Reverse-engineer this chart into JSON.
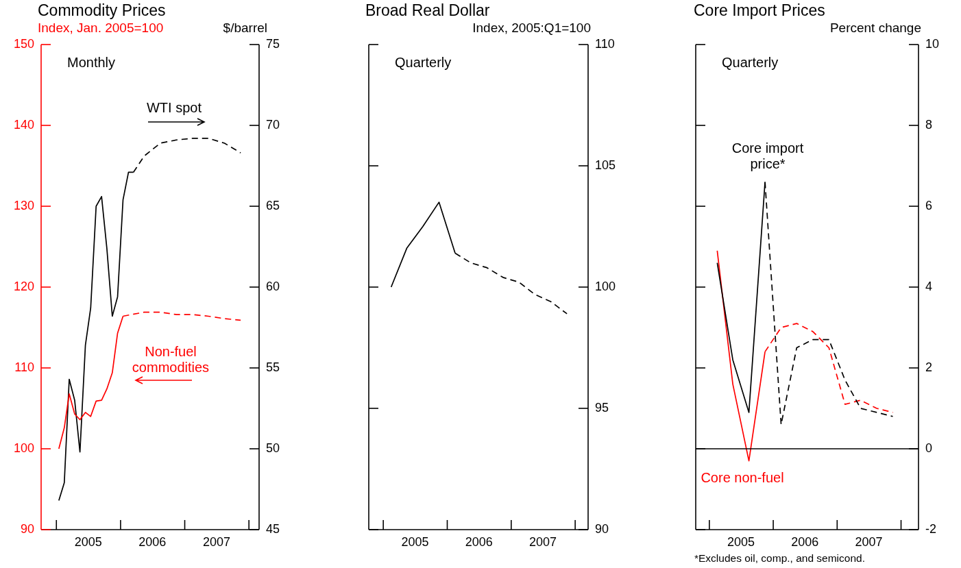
{
  "chart_data": [
    {
      "type": "line",
      "title": "Commodity Prices",
      "ylabel": "Index, Jan. 2005=100",
      "y2label": "$/barrel",
      "annotations": [
        "Monthly"
      ],
      "xlim": [
        "2004-10-06",
        "2008-02-28"
      ],
      "xticks": [
        {
          "value": "2005-01-01",
          "label": null
        },
        {
          "value": "2005-07-01",
          "label": "2005"
        },
        {
          "value": "2006-01-01",
          "label": null
        },
        {
          "value": "2006-07-01",
          "label": "2006"
        },
        {
          "value": "2007-01-01",
          "label": null
        },
        {
          "value": "2007-07-01",
          "label": "2007"
        },
        {
          "value": "2008-01-01",
          "label": null
        }
      ],
      "ylim": [
        90,
        150
      ],
      "yticks": [
        90,
        100,
        110,
        120,
        130,
        140,
        150
      ],
      "y2lim": [
        45,
        75
      ],
      "y2ticks": [
        45,
        50,
        55,
        60,
        65,
        70,
        75
      ],
      "series": [
        {
          "name": "Non-fuel commodities",
          "color": "#ff0000",
          "x": [
            "2005-01-15",
            "2005-02-15",
            "2005-03-15",
            "2005-04-15",
            "2005-05-15",
            "2005-06-15",
            "2005-07-15",
            "2005-08-15",
            "2005-09-15",
            "2005-10-15",
            "2005-11-15",
            "2005-12-15",
            "2006-01-15"
          ],
          "values": [
            100,
            102.6,
            106.8,
            104.3,
            103.6,
            104.5,
            104.0,
            105.9,
            106.0,
            107.4,
            109.4,
            114.3,
            116.4
          ]
        },
        {
          "color": "#ff0000",
          "line_style": "dashed",
          "x": [
            "2006-01-15",
            "2006-05-15",
            "2006-08-15",
            "2006-11-15",
            "2007-02-15",
            "2007-05-15",
            "2007-08-15",
            "2007-11-15"
          ],
          "values": [
            116.4,
            116.9,
            116.9,
            116.6,
            116.6,
            116.4,
            116.1,
            115.9
          ]
        },
        {
          "name": "WTI spot",
          "color": "#000000",
          "axis": "y2",
          "x": [
            "2005-01-15",
            "2005-02-15",
            "2005-03-15",
            "2005-04-15",
            "2005-05-15",
            "2005-06-15",
            "2005-07-15",
            "2005-08-15",
            "2005-09-15",
            "2005-10-15",
            "2005-11-15",
            "2005-12-15",
            "2006-01-15",
            "2006-02-15",
            "2006-03-15"
          ],
          "values": [
            46.8,
            47.9,
            54.3,
            53.0,
            49.8,
            56.4,
            58.7,
            65.0,
            65.6,
            62.4,
            58.2,
            59.4,
            65.4,
            67.1,
            67.1
          ]
        },
        {
          "color": "#000000",
          "axis": "y2",
          "line_style": "dashed",
          "x": [
            "2006-03-15",
            "2006-05-15",
            "2006-08-15",
            "2006-11-15",
            "2007-02-15",
            "2007-05-15",
            "2007-08-15",
            "2007-11-15"
          ],
          "values": [
            67.1,
            68.1,
            68.9,
            69.1,
            69.2,
            69.2,
            68.9,
            68.3
          ]
        }
      ]
    },
    {
      "type": "line",
      "title": "Broad Real Dollar",
      "ylabel": "Index, 2005:Q1=100",
      "annotations": [
        "Quarterly"
      ],
      "xlim": [
        "2004-10-10",
        "2008-03-15"
      ],
      "xticks": [
        {
          "value": "2005-01-01",
          "label": null
        },
        {
          "value": "2005-07-01",
          "label": "2005"
        },
        {
          "value": "2006-01-01",
          "label": null
        },
        {
          "value": "2006-07-01",
          "label": "2006"
        },
        {
          "value": "2007-01-01",
          "label": null
        },
        {
          "value": "2007-07-01",
          "label": "2007"
        },
        {
          "value": "2008-01-01",
          "label": null
        }
      ],
      "ylim": [
        90,
        110
      ],
      "yticks": [
        90,
        95,
        100,
        105,
        110
      ],
      "series": [
        {
          "color": "#000000",
          "x": [
            "2005-02-15",
            "2005-05-15",
            "2005-08-15",
            "2005-11-15",
            "2006-02-15"
          ],
          "values": [
            100,
            101.6,
            102.5,
            103.5,
            101.4
          ]
        },
        {
          "color": "#000000",
          "line_style": "dashed",
          "x": [
            "2006-02-15",
            "2006-05-15",
            "2006-08-15",
            "2006-11-15",
            "2007-02-15",
            "2007-05-15",
            "2007-08-15",
            "2007-11-15"
          ],
          "values": [
            101.4,
            101.0,
            100.8,
            100.4,
            100.2,
            99.7,
            99.4,
            98.9
          ]
        }
      ]
    },
    {
      "type": "line",
      "title": "Core Import Prices",
      "ylabel": "Percent change",
      "annotations": [
        "Quarterly",
        "*Excludes oil, comp., and semicond."
      ],
      "xlim": [
        "2004-10-15",
        "2008-04-10"
      ],
      "xticks": [
        {
          "value": "2005-01-01",
          "label": null
        },
        {
          "value": "2005-07-01",
          "label": "2005"
        },
        {
          "value": "2006-01-01",
          "label": null
        },
        {
          "value": "2006-07-01",
          "label": "2006"
        },
        {
          "value": "2007-01-01",
          "label": null
        },
        {
          "value": "2007-07-01",
          "label": "2007"
        },
        {
          "value": "2008-01-01",
          "label": null
        }
      ],
      "ylim": [
        -2,
        10
      ],
      "yticks": [
        -2,
        0,
        2,
        4,
        6,
        8,
        10
      ],
      "ref_lines": [
        {
          "axis": "y",
          "value": 0
        }
      ],
      "series": [
        {
          "name": "Core import price*",
          "color": "#000000",
          "x": [
            "2005-02-15",
            "2005-05-15",
            "2005-08-15",
            "2005-11-15"
          ],
          "values": [
            4.6,
            2.2,
            0.9,
            6.6
          ]
        },
        {
          "color": "#000000",
          "line_style": "dashed",
          "x": [
            "2005-11-15",
            "2006-02-15",
            "2006-05-15",
            "2006-08-15",
            "2006-11-15",
            "2007-02-15",
            "2007-05-15",
            "2007-08-15",
            "2007-11-15"
          ],
          "values": [
            6.6,
            0.6,
            2.5,
            2.7,
            2.7,
            1.7,
            1.0,
            0.9,
            0.8
          ]
        },
        {
          "name": "Core non-fuel",
          "color": "#ff0000",
          "x": [
            "2005-02-15",
            "2005-05-15",
            "2005-08-15",
            "2005-11-15"
          ],
          "values": [
            4.9,
            1.6,
            -0.3,
            2.4
          ]
        },
        {
          "color": "#ff0000",
          "line_style": "dashed",
          "x": [
            "2005-11-15",
            "2006-02-15",
            "2006-05-15",
            "2006-08-15",
            "2006-11-15",
            "2007-02-15",
            "2007-05-15",
            "2007-08-15",
            "2007-11-15"
          ],
          "values": [
            2.4,
            3.0,
            3.1,
            2.9,
            2.5,
            1.1,
            1.2,
            1.0,
            0.9
          ]
        }
      ]
    }
  ]
}
